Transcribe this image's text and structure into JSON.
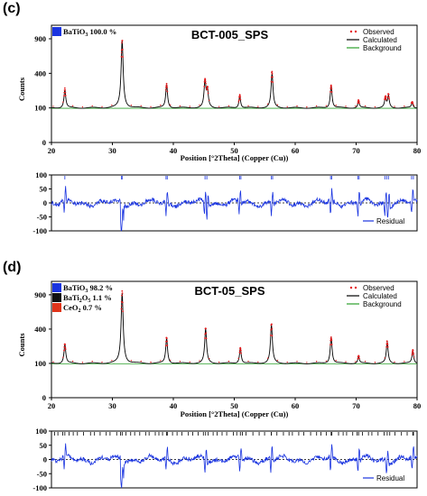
{
  "figure": {
    "panel_c_label": "(c)",
    "panel_d_label": "(d)"
  },
  "chart_data": [
    {
      "type": "line",
      "panel": "(c)",
      "title": "BCT-005_SPS",
      "xlabel": "Position [°2Theta] (Copper (Cu))",
      "ylabel": "Counts",
      "xlim": [
        20,
        80
      ],
      "x_ticks": [
        "20",
        "30",
        "40",
        "50",
        "60",
        "70",
        "80"
      ],
      "y_ticks": [
        "0",
        "100",
        "400",
        "900"
      ],
      "y_scale": "sqrt",
      "ylim": [
        0,
        1150
      ],
      "phases": [
        {
          "name": "BaTiO",
          "sub": "3",
          "percent": "100.0 %",
          "color": "#1a34e0"
        }
      ],
      "legend": [
        "Observed",
        "Calculated",
        "Background"
      ],
      "background": 100,
      "peaks": [
        {
          "x": 22.2,
          "y": 230
        },
        {
          "x": 31.6,
          "y": 870
        },
        {
          "x": 38.9,
          "y": 280
        },
        {
          "x": 45.2,
          "y": 320
        },
        {
          "x": 45.6,
          "y": 220
        },
        {
          "x": 50.9,
          "y": 180
        },
        {
          "x": 56.2,
          "y": 400
        },
        {
          "x": 65.9,
          "y": 270
        },
        {
          "x": 70.4,
          "y": 140
        },
        {
          "x": 74.8,
          "y": 160
        },
        {
          "x": 75.3,
          "y": 180
        },
        {
          "x": 79.2,
          "y": 130
        }
      ],
      "residual": {
        "legend": "Residual",
        "y_ticks": [
          "100",
          "50",
          "0",
          "-50",
          "-100"
        ],
        "ylim": [
          -100,
          100
        ],
        "reflections": [
          22.2,
          31.5,
          31.6,
          38.8,
          39.0,
          45.2,
          45.5,
          50.9,
          51.1,
          56.1,
          56.3,
          65.8,
          66.0,
          70.3,
          70.5,
          74.7,
          75.0,
          75.3,
          79.1,
          79.4
        ]
      }
    },
    {
      "type": "line",
      "panel": "(d)",
      "title": "BCT-05_SPS",
      "xlabel": "Position [°2Theta] (Copper (Cu))",
      "ylabel": "Counts",
      "xlim": [
        20,
        80
      ],
      "x_ticks": [
        "20",
        "30",
        "40",
        "50",
        "60",
        "70",
        "80"
      ],
      "y_ticks": [
        "0",
        "100",
        "400",
        "900"
      ],
      "y_scale": "sqrt",
      "ylim": [
        0,
        1150
      ],
      "phases": [
        {
          "name": "BaTiO",
          "sub": "3",
          "percent": "98.2 %",
          "color": "#1a34e0"
        },
        {
          "name": "BaTi",
          "sub": "2",
          "name2": "O",
          "sub2": "5",
          "percent": "1.1 %",
          "color": "#111111"
        },
        {
          "name": "CeO",
          "sub": "2",
          "percent": "0.7 %",
          "color": "#e0341a"
        }
      ],
      "legend": [
        "Observed",
        "Calculated",
        "Background"
      ],
      "background": 100,
      "peaks": [
        {
          "x": 22.2,
          "y": 240
        },
        {
          "x": 31.6,
          "y": 930
        },
        {
          "x": 38.9,
          "y": 300
        },
        {
          "x": 45.3,
          "y": 400
        },
        {
          "x": 51.0,
          "y": 210
        },
        {
          "x": 56.1,
          "y": 450
        },
        {
          "x": 65.9,
          "y": 310
        },
        {
          "x": 70.4,
          "y": 140
        },
        {
          "x": 75.1,
          "y": 260
        },
        {
          "x": 79.3,
          "y": 180
        }
      ],
      "residual": {
        "legend": "Residual",
        "y_ticks": [
          "100",
          "50",
          "0",
          "-50",
          "-100"
        ],
        "ylim": [
          -100,
          100
        ],
        "reflections_dense": true,
        "reflections": [
          22.2,
          31.6,
          38.9,
          45.3,
          51.0,
          56.1,
          65.9,
          70.4,
          75.1,
          79.3
        ]
      }
    }
  ]
}
